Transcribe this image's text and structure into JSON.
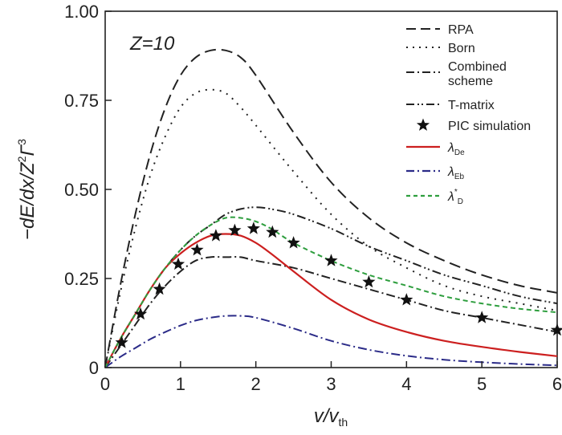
{
  "chart_data": {
    "type": "line",
    "annotation": "Z=10",
    "xlabel": {
      "main": "v/v",
      "sub": "th"
    },
    "ylabel": {
      "main": "−dE/dx/Z",
      "sup1": "2",
      "mid": "Γ",
      "sup2": "3"
    },
    "xlim": [
      0,
      6
    ],
    "ylim": [
      0,
      1.0
    ],
    "xticks": [
      0,
      1,
      2,
      3,
      4,
      5,
      6
    ],
    "xtick_labels": [
      "0",
      "1",
      "2",
      "3",
      "4",
      "5",
      "6"
    ],
    "yticks": [
      0,
      0.25,
      0.5,
      0.75,
      1.0
    ],
    "ytick_labels": [
      "0",
      "0.25",
      "0.50",
      "0.75",
      "1.00"
    ],
    "legend_position": "top-right",
    "series": [
      {
        "name": "RPA",
        "color": "#222222",
        "style": "long-dash",
        "x": [
          0,
          0.2,
          0.4,
          0.6,
          0.8,
          1.0,
          1.2,
          1.4,
          1.6,
          1.8,
          2.0,
          2.5,
          3.0,
          3.5,
          4.0,
          4.5,
          5.0,
          5.5,
          6.0
        ],
        "y": [
          0,
          0.23,
          0.43,
          0.6,
          0.73,
          0.82,
          0.87,
          0.89,
          0.89,
          0.87,
          0.82,
          0.66,
          0.52,
          0.42,
          0.35,
          0.3,
          0.26,
          0.23,
          0.21
        ]
      },
      {
        "name": "Born",
        "color": "#222222",
        "style": "dot",
        "x": [
          0,
          0.2,
          0.4,
          0.6,
          0.8,
          1.0,
          1.2,
          1.4,
          1.6,
          1.8,
          2.0,
          2.5,
          3.0,
          3.5,
          4.0,
          4.5,
          5.0,
          5.5,
          6.0
        ],
        "y": [
          0,
          0.21,
          0.39,
          0.54,
          0.65,
          0.73,
          0.77,
          0.78,
          0.77,
          0.73,
          0.68,
          0.55,
          0.43,
          0.34,
          0.28,
          0.23,
          0.2,
          0.18,
          0.16
        ]
      },
      {
        "name": "Combined scheme",
        "color": "#222222",
        "style": "dash-dot",
        "x": [
          0,
          0.2,
          0.4,
          0.6,
          0.8,
          1.0,
          1.2,
          1.4,
          1.6,
          1.8,
          2.0,
          2.5,
          3.0,
          3.5,
          4.0,
          4.5,
          5.0,
          5.5,
          6.0
        ],
        "y": [
          0,
          0.06,
          0.12,
          0.18,
          0.23,
          0.27,
          0.3,
          0.31,
          0.31,
          0.31,
          0.3,
          0.28,
          0.25,
          0.22,
          0.19,
          0.16,
          0.14,
          0.12,
          0.1
        ]
      },
      {
        "name": "T-matrix",
        "color": "#222222",
        "style": "dash-dot-dot",
        "x": [
          0,
          0.2,
          0.4,
          0.6,
          0.8,
          1.0,
          1.2,
          1.4,
          1.6,
          1.8,
          2.0,
          2.2,
          2.5,
          3.0,
          3.5,
          4.0,
          4.5,
          5.0,
          5.5,
          6.0
        ],
        "y": [
          0,
          0.08,
          0.15,
          0.22,
          0.28,
          0.33,
          0.37,
          0.4,
          0.43,
          0.445,
          0.45,
          0.445,
          0.43,
          0.39,
          0.34,
          0.3,
          0.26,
          0.23,
          0.2,
          0.18
        ]
      },
      {
        "name": "PIC simulation",
        "color": "#111111",
        "style": "star",
        "x": [
          0.22,
          0.47,
          0.72,
          0.97,
          1.22,
          1.47,
          1.72,
          1.97,
          2.22,
          2.5,
          3.0,
          3.5,
          4.0,
          5.0,
          6.0
        ],
        "y": [
          0.07,
          0.15,
          0.22,
          0.29,
          0.33,
          0.37,
          0.385,
          0.39,
          0.38,
          0.35,
          0.3,
          0.24,
          0.19,
          0.14,
          0.105
        ]
      },
      {
        "name": "λDe",
        "label_main": "λ",
        "label_sub": "De",
        "color": "#cc1f1f",
        "style": "solid",
        "x": [
          0,
          0.2,
          0.4,
          0.6,
          0.8,
          1.0,
          1.2,
          1.4,
          1.6,
          1.8,
          2.0,
          2.2,
          2.5,
          3.0,
          3.5,
          4.0,
          4.5,
          5.0,
          5.5,
          6.0
        ],
        "y": [
          0,
          0.08,
          0.15,
          0.22,
          0.28,
          0.32,
          0.35,
          0.37,
          0.375,
          0.37,
          0.35,
          0.32,
          0.27,
          0.19,
          0.135,
          0.1,
          0.075,
          0.058,
          0.044,
          0.032
        ]
      },
      {
        "name": "λEb",
        "label_main": "λ",
        "label_sub": "Eb",
        "color": "#2b2b88",
        "style": "dash-dot",
        "x": [
          0,
          0.2,
          0.4,
          0.6,
          0.8,
          1.0,
          1.2,
          1.4,
          1.6,
          1.8,
          2.0,
          2.5,
          3.0,
          3.5,
          4.0,
          4.5,
          5.0,
          5.5,
          6.0
        ],
        "y": [
          0,
          0.03,
          0.055,
          0.08,
          0.1,
          0.118,
          0.132,
          0.14,
          0.145,
          0.145,
          0.14,
          0.11,
          0.075,
          0.05,
          0.033,
          0.022,
          0.015,
          0.01,
          0.006
        ]
      },
      {
        "name": "λ*D",
        "label_main": "λ",
        "label_sup": "*",
        "label_sub": "D",
        "color": "#2e9e3e",
        "style": "short-dash",
        "x": [
          0,
          0.2,
          0.4,
          0.6,
          0.8,
          1.0,
          1.2,
          1.4,
          1.6,
          1.8,
          2.0,
          2.2,
          2.5,
          3.0,
          3.5,
          4.0,
          4.5,
          5.0,
          5.5,
          6.0
        ],
        "y": [
          0,
          0.08,
          0.15,
          0.22,
          0.28,
          0.33,
          0.37,
          0.4,
          0.42,
          0.42,
          0.41,
          0.39,
          0.35,
          0.3,
          0.26,
          0.23,
          0.2,
          0.18,
          0.165,
          0.155
        ]
      }
    ]
  }
}
